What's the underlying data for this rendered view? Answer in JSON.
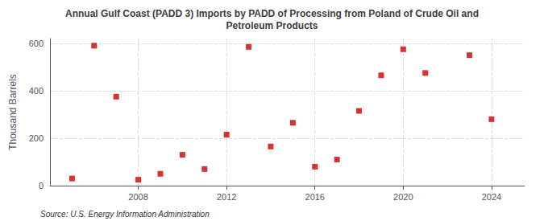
{
  "chart_data": {
    "type": "scatter",
    "title": "Annual Gulf Coast (PADD 3) Imports by PADD of Processing from Poland of Crude Oil and\nPetroleum Products",
    "y_label": "Thousand Barrels",
    "annotations": [
      "Source: U.S. Energy Information Administration"
    ],
    "x": [
      2005,
      2006,
      2007,
      2008,
      2009,
      2010,
      2011,
      2012,
      2013,
      2014,
      2015,
      2016,
      2017,
      2018,
      2019,
      2020,
      2021,
      2023,
      2024
    ],
    "values": [
      30,
      590,
      375,
      25,
      50,
      130,
      70,
      215,
      585,
      165,
      265,
      80,
      110,
      315,
      465,
      575,
      475,
      550,
      280
    ],
    "color": "#cc0000",
    "marker": "square",
    "xlim": [
      2004.0,
      2025.5
    ],
    "ylim": [
      0,
      620
    ],
    "xticks": [
      2008,
      2012,
      2016,
      2020,
      2024
    ],
    "yticks": [
      0,
      200,
      400,
      600
    ],
    "grid": true
  }
}
